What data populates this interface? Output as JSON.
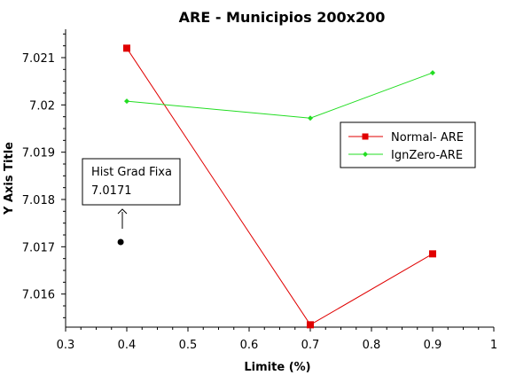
{
  "chart_data": {
    "type": "line",
    "title": "ARE - Municipios 200x200",
    "xlabel": "Limite (%)",
    "ylabel": "Y Axis Title",
    "xlim": [
      0.3,
      1.0
    ],
    "ylim": [
      7.0153,
      7.0216
    ],
    "x_ticks": [
      0.3,
      0.4,
      0.5,
      0.6,
      0.7,
      0.8,
      0.9,
      1.0
    ],
    "x_tick_labels": [
      "0.3",
      "0.4",
      "0.5",
      "0.6",
      "0.7",
      "0.8",
      "0.9",
      "1"
    ],
    "y_ticks": [
      7.016,
      7.017,
      7.018,
      7.019,
      7.02,
      7.021
    ],
    "y_tick_labels": [
      "7.016",
      "7.017",
      "7.018",
      "7.019",
      "7.02",
      "7.021"
    ],
    "grid": false,
    "legend_position": "right",
    "series": [
      {
        "name": "Normal- ARE",
        "color": "#e00000",
        "marker": "square",
        "x": [
          0.4,
          0.7,
          0.9
        ],
        "y": [
          7.0212,
          7.01535,
          7.01685
        ]
      },
      {
        "name": "IgnZero-ARE",
        "color": "#22dd22",
        "marker": "diamond",
        "x": [
          0.4,
          0.7,
          0.9
        ],
        "y": [
          7.02008,
          7.01972,
          7.02068
        ]
      }
    ],
    "annotations": [
      {
        "title": "Hist Grad Fixa",
        "value": "7.0171",
        "x": 0.39,
        "y": 7.0171
      }
    ]
  }
}
